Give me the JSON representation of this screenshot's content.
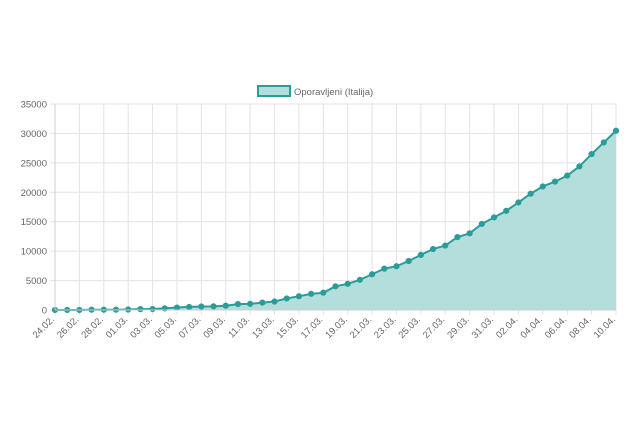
{
  "chart_data": {
    "type": "area",
    "title": "",
    "xlabel": "",
    "ylabel": "",
    "ylim": [
      0,
      35000
    ],
    "yticks": [
      0,
      5000,
      10000,
      15000,
      20000,
      25000,
      30000,
      35000
    ],
    "grid": true,
    "legend_position": "top",
    "categories": [
      "24.02.",
      "25.02.",
      "26.02.",
      "27.02.",
      "28.02.",
      "29.02.",
      "01.03.",
      "02.03.",
      "03.03.",
      "04.03.",
      "05.03.",
      "06.03.",
      "07.03.",
      "08.03.",
      "09.03.",
      "10.03.",
      "11.03.",
      "12.03.",
      "13.03.",
      "14.03.",
      "15.03.",
      "16.03.",
      "17.03.",
      "18.03.",
      "19.03.",
      "20.03.",
      "21.03.",
      "22.03.",
      "23.03.",
      "24.03.",
      "25.03.",
      "26.03.",
      "27.03.",
      "28.03.",
      "29.03.",
      "30.03.",
      "31.03.",
      "01.04.",
      "02.04.",
      "03.04.",
      "04.04.",
      "05.04.",
      "06.04.",
      "07.04.",
      "08.04.",
      "09.04.",
      "10.04."
    ],
    "tick_labels": [
      "24.02.",
      "26.02.",
      "28.02.",
      "01.03.",
      "03.03.",
      "05.03.",
      "07.03.",
      "09.03.",
      "11.03.",
      "13.03.",
      "15.03.",
      "17.03.",
      "19.03.",
      "21.03.",
      "23.03.",
      "25.03.",
      "27.03.",
      "29.03.",
      "31.03.",
      "02.04.",
      "04.04.",
      "06.04.",
      "08.04.",
      "10.04."
    ],
    "series": [
      {
        "name": "Oporavljeni (Italija)",
        "color": "#2a9d9a",
        "fill": "#b4dedc",
        "values": [
          1,
          1,
          3,
          45,
          46,
          46,
          83,
          149,
          160,
          276,
          414,
          523,
          589,
          622,
          724,
          1004,
          1045,
          1258,
          1439,
          1966,
          2335,
          2749,
          2941,
          4025,
          4440,
          5129,
          6072,
          7024,
          7432,
          8326,
          9362,
          10361,
          10950,
          12384,
          13030,
          14620,
          15729,
          16847,
          18278,
          19758,
          20996,
          21815,
          22837,
          24392,
          26491,
          28470,
          30455
        ]
      }
    ]
  }
}
